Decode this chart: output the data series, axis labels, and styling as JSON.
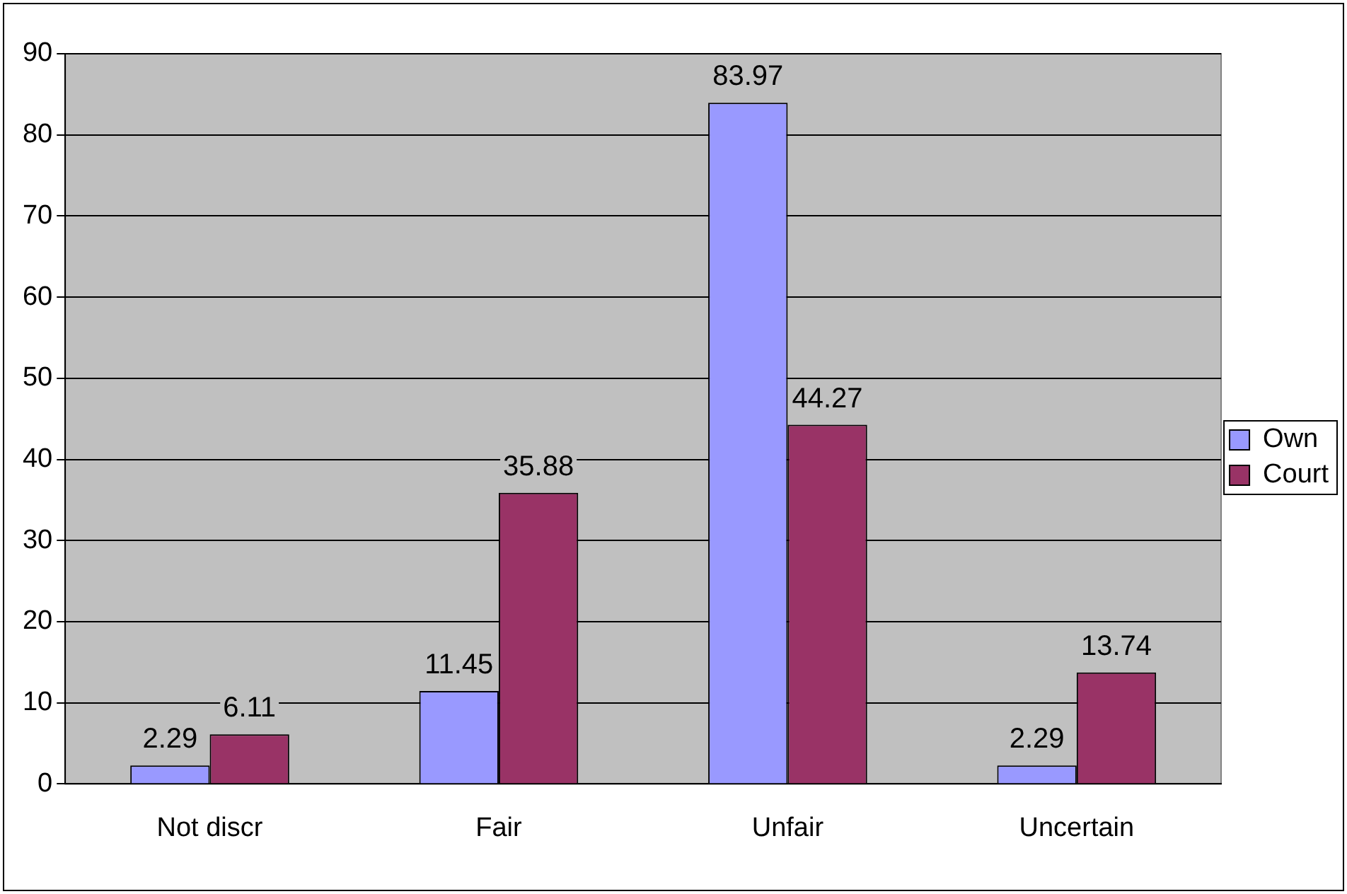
{
  "chart_data": {
    "type": "bar",
    "categories": [
      "Not discr",
      "Fair",
      "Unfair",
      "Uncertain"
    ],
    "series": [
      {
        "name": "Own",
        "color": "#9999ff",
        "values": [
          2.29,
          11.45,
          83.97,
          2.29
        ]
      },
      {
        "name": "Court",
        "color": "#993366",
        "values": [
          6.11,
          35.88,
          44.27,
          13.74
        ]
      }
    ],
    "ylim": [
      0,
      90
    ],
    "yticks": [
      0,
      10,
      20,
      30,
      40,
      50,
      60,
      70,
      80,
      90
    ],
    "grid": "y",
    "legend": "right",
    "data_labels": true
  }
}
